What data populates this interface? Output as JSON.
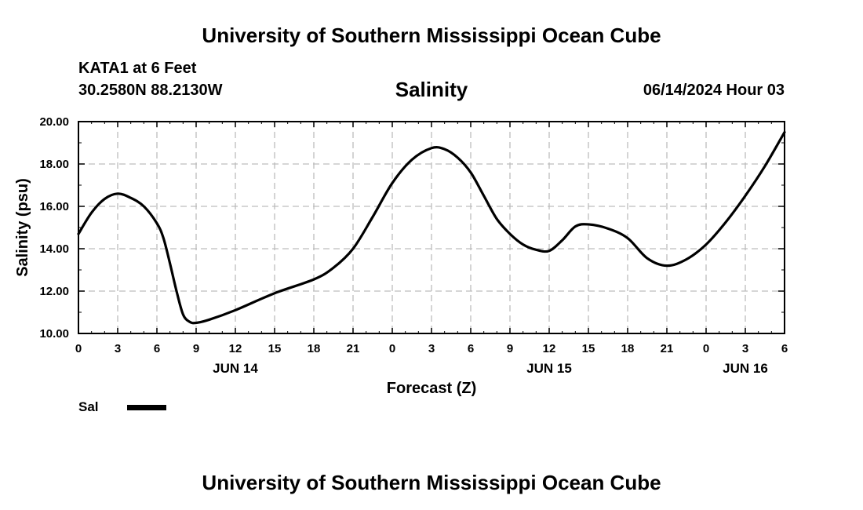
{
  "header": {
    "title": "University of Southern Mississippi Ocean Cube",
    "station": "KATA1 at 6 Feet",
    "coords": "30.2580N  88.2130W",
    "datetime": "06/14/2024 Hour 03"
  },
  "footer": {
    "title": "University of Southern Mississippi Ocean Cube"
  },
  "legend": {
    "label": "Sal"
  },
  "chart_data": {
    "type": "line",
    "title": "Salinity",
    "xlabel": "Forecast (Z)",
    "ylabel": "Salinity (psu)",
    "xlim": [
      0,
      54
    ],
    "ylim": [
      10,
      20
    ],
    "x_ticks": [
      0,
      3,
      6,
      9,
      12,
      15,
      18,
      21,
      24,
      27,
      30,
      33,
      36,
      39,
      42,
      45,
      48,
      51,
      54
    ],
    "x_tick_labels": [
      "0",
      "3",
      "6",
      "9",
      "12",
      "15",
      "18",
      "21",
      "0",
      "3",
      "6",
      "9",
      "12",
      "15",
      "18",
      "21",
      "0",
      "3",
      "6"
    ],
    "y_ticks": [
      10,
      12,
      14,
      16,
      18,
      20
    ],
    "y_tick_labels": [
      "10.00",
      "12.00",
      "14.00",
      "16.00",
      "18.00",
      "20.00"
    ],
    "date_labels": [
      {
        "x": 12,
        "label": "JUN 14"
      },
      {
        "x": 36,
        "label": "JUN 15"
      },
      {
        "x": 51,
        "label": "JUN 16"
      }
    ],
    "grid": true,
    "series": [
      {
        "name": "Sal",
        "color": "#000000",
        "x": [
          0,
          1,
          2,
          3,
          4,
          5,
          6,
          6.5,
          7,
          7.5,
          8,
          8.5,
          9,
          10,
          12,
          15,
          18,
          19.5,
          21,
          22.5,
          24,
          25.5,
          27,
          28,
          29,
          30,
          31,
          32,
          33,
          34,
          35,
          36,
          37,
          38,
          39,
          40.5,
          42,
          43.5,
          45,
          46.5,
          48,
          49.5,
          51,
          52.5,
          54
        ],
        "values": [
          14.7,
          15.7,
          16.35,
          16.6,
          16.4,
          16.0,
          15.2,
          14.5,
          13.3,
          12.0,
          10.9,
          10.55,
          10.5,
          10.65,
          11.1,
          11.9,
          12.55,
          13.1,
          14.0,
          15.5,
          17.1,
          18.2,
          18.75,
          18.7,
          18.3,
          17.6,
          16.5,
          15.4,
          14.7,
          14.2,
          13.95,
          13.9,
          14.4,
          15.05,
          15.15,
          14.95,
          14.5,
          13.55,
          13.2,
          13.5,
          14.2,
          15.25,
          16.5,
          17.9,
          19.5
        ]
      }
    ]
  }
}
